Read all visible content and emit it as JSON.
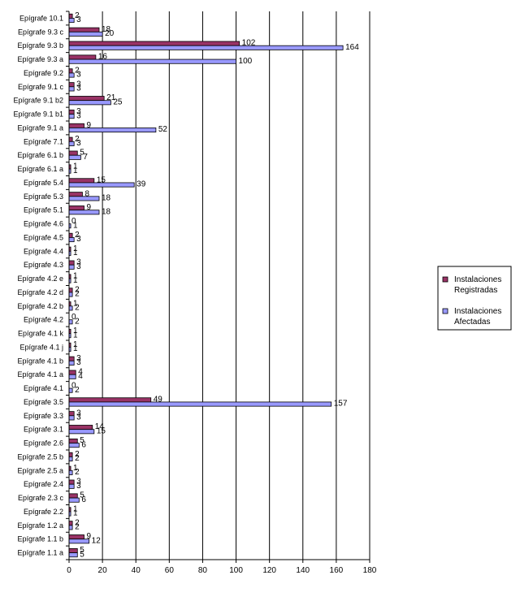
{
  "chart_data": {
    "type": "bar",
    "orientation": "horizontal",
    "categories": [
      "Epígrafe 10.1",
      "Epígrafe 9.3 c",
      "Epígrafe 9.3 b",
      "Epígrafe 9.3 a",
      "Epígrafe 9.2",
      "Epígrafe 9.1 c",
      "Epígrafe 9.1 b2",
      "Epígrafe 9.1 b1",
      "Epígrafe 9.1 a",
      "Epígrafe 7.1",
      "Epígrafe 6.1 b",
      "Epígrafe 6.1 a",
      "Epígrafe 5.4",
      "Epígrafe 5.3",
      "Epígrafe 5.1",
      "Epígrafe 4.6",
      "Epígrafe 4.5",
      "Epígrafe 4.4",
      "Epígrafe 4.3",
      "Epígrafe 4.2 e",
      "Epígrafe 4.2 d",
      "Epígrafe 4.2 b",
      "Epígrafe 4.2",
      "Epígrafe 4.1 k",
      "Epígrafe 4.1 j",
      "Epígrafe 4.1 b",
      "Epígrafe 4.1 a",
      "Epígrafe 4.1",
      "Epígrafe 3.5",
      "Epígrafe 3.3",
      "Epígrafe 3.1",
      "Epígrafe 2.6",
      "Epígrafe 2.5 b",
      "Epígrafe 2.5 a",
      "Epígrafe 2.4",
      "Epígrafe 2.3 c",
      "Epígrafe 2.2",
      "Epígrafe 1.2 a",
      "Epígrafe 1.1 b",
      "Epígrafe 1.1 a"
    ],
    "series": [
      {
        "name": "Instalaciones Registradas",
        "color": "#993366",
        "values": [
          2,
          18,
          102,
          16,
          2,
          3,
          21,
          3,
          9,
          2,
          5,
          1,
          15,
          8,
          9,
          0,
          2,
          1,
          3,
          1,
          2,
          1,
          0,
          1,
          1,
          3,
          4,
          0,
          49,
          3,
          14,
          5,
          2,
          1,
          3,
          5,
          1,
          2,
          9,
          5
        ]
      },
      {
        "name": "Instalaciones Afectadas",
        "color": "#9999ff",
        "values": [
          3,
          20,
          164,
          100,
          3,
          3,
          25,
          3,
          52,
          3,
          7,
          1,
          39,
          18,
          18,
          1,
          3,
          1,
          3,
          1,
          2,
          2,
          2,
          1,
          1,
          3,
          4,
          2,
          157,
          3,
          15,
          6,
          2,
          2,
          3,
          6,
          1,
          2,
          12,
          5
        ]
      }
    ],
    "title": "",
    "xlabel": "",
    "ylabel": "",
    "xlim": [
      0,
      180
    ],
    "xticks": [
      0,
      20,
      40,
      60,
      80,
      100,
      120,
      140,
      160,
      180
    ],
    "grid": "vertical",
    "legend": "right"
  }
}
